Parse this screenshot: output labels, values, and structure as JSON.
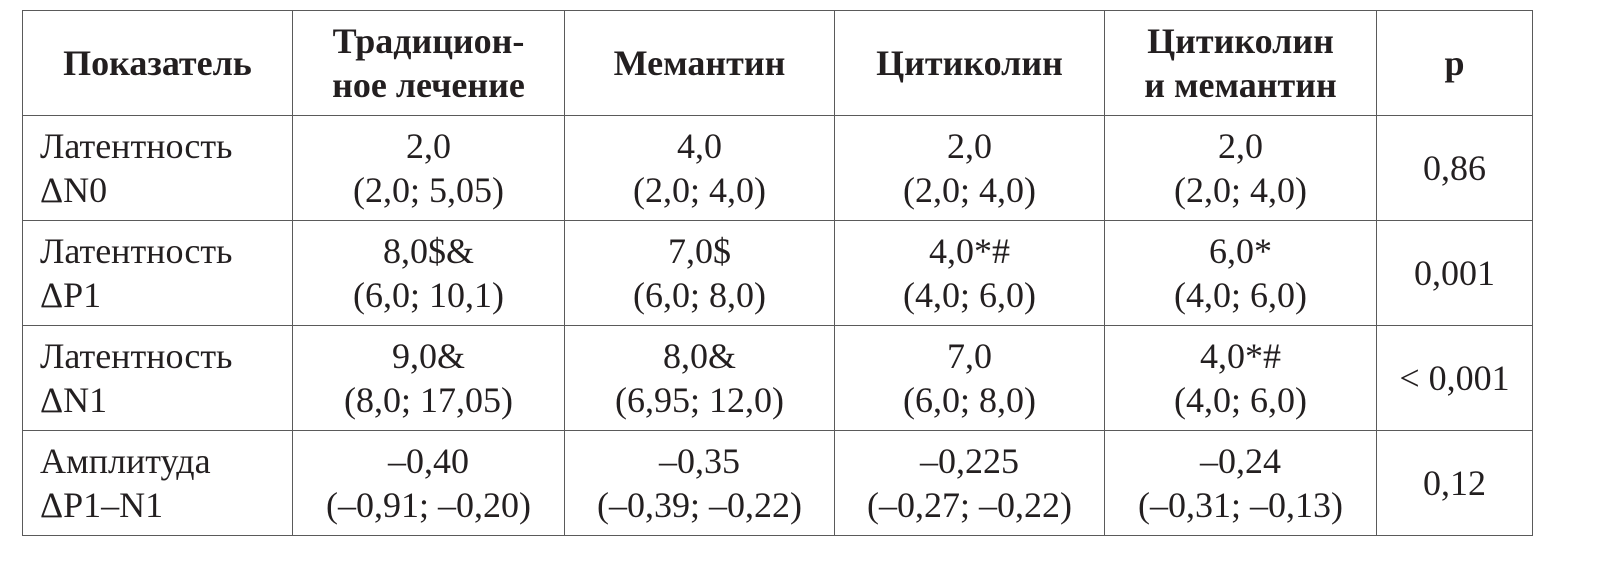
{
  "table": {
    "headers": [
      [
        "Показатель"
      ],
      [
        "Традицион-",
        "ное лечение"
      ],
      [
        "Мемантин"
      ],
      [
        "Цитиколин"
      ],
      [
        "Цитиколин",
        "и мемантин"
      ],
      [
        "p"
      ]
    ],
    "rows": [
      {
        "label": [
          "Латентность",
          "ΔN0"
        ],
        "cells": [
          [
            "2,0",
            "(2,0; 5,05)"
          ],
          [
            "4,0",
            "(2,0; 4,0)"
          ],
          [
            "2,0",
            "(2,0; 4,0)"
          ],
          [
            "2,0",
            "(2,0; 4,0)"
          ]
        ],
        "p": "0,86"
      },
      {
        "label": [
          "Латентность",
          "ΔP1"
        ],
        "cells": [
          [
            "8,0$&",
            "(6,0; 10,1)"
          ],
          [
            "7,0$",
            "(6,0; 8,0)"
          ],
          [
            "4,0*#",
            "(4,0; 6,0)"
          ],
          [
            "6,0*",
            "(4,0; 6,0)"
          ]
        ],
        "p": "0,001"
      },
      {
        "label": [
          "Латентность",
          "ΔN1"
        ],
        "cells": [
          [
            "9,0&",
            "(8,0; 17,05)"
          ],
          [
            "8,0&",
            "(6,95; 12,0)"
          ],
          [
            "7,0",
            "(6,0; 8,0)"
          ],
          [
            "4,0*#",
            "(4,0; 6,0)"
          ]
        ],
        "p": "< 0,001"
      },
      {
        "label": [
          "Амплитуда",
          "ΔP1–N1"
        ],
        "cells": [
          [
            "–0,40",
            "(–0,91; –0,20)"
          ],
          [
            "–0,35",
            "(–0,39; –0,22)"
          ],
          [
            "–0,225",
            "(–0,27; –0,22)"
          ],
          [
            "–0,24",
            "(–0,31; –0,13)"
          ]
        ],
        "p": "0,12"
      }
    ]
  }
}
